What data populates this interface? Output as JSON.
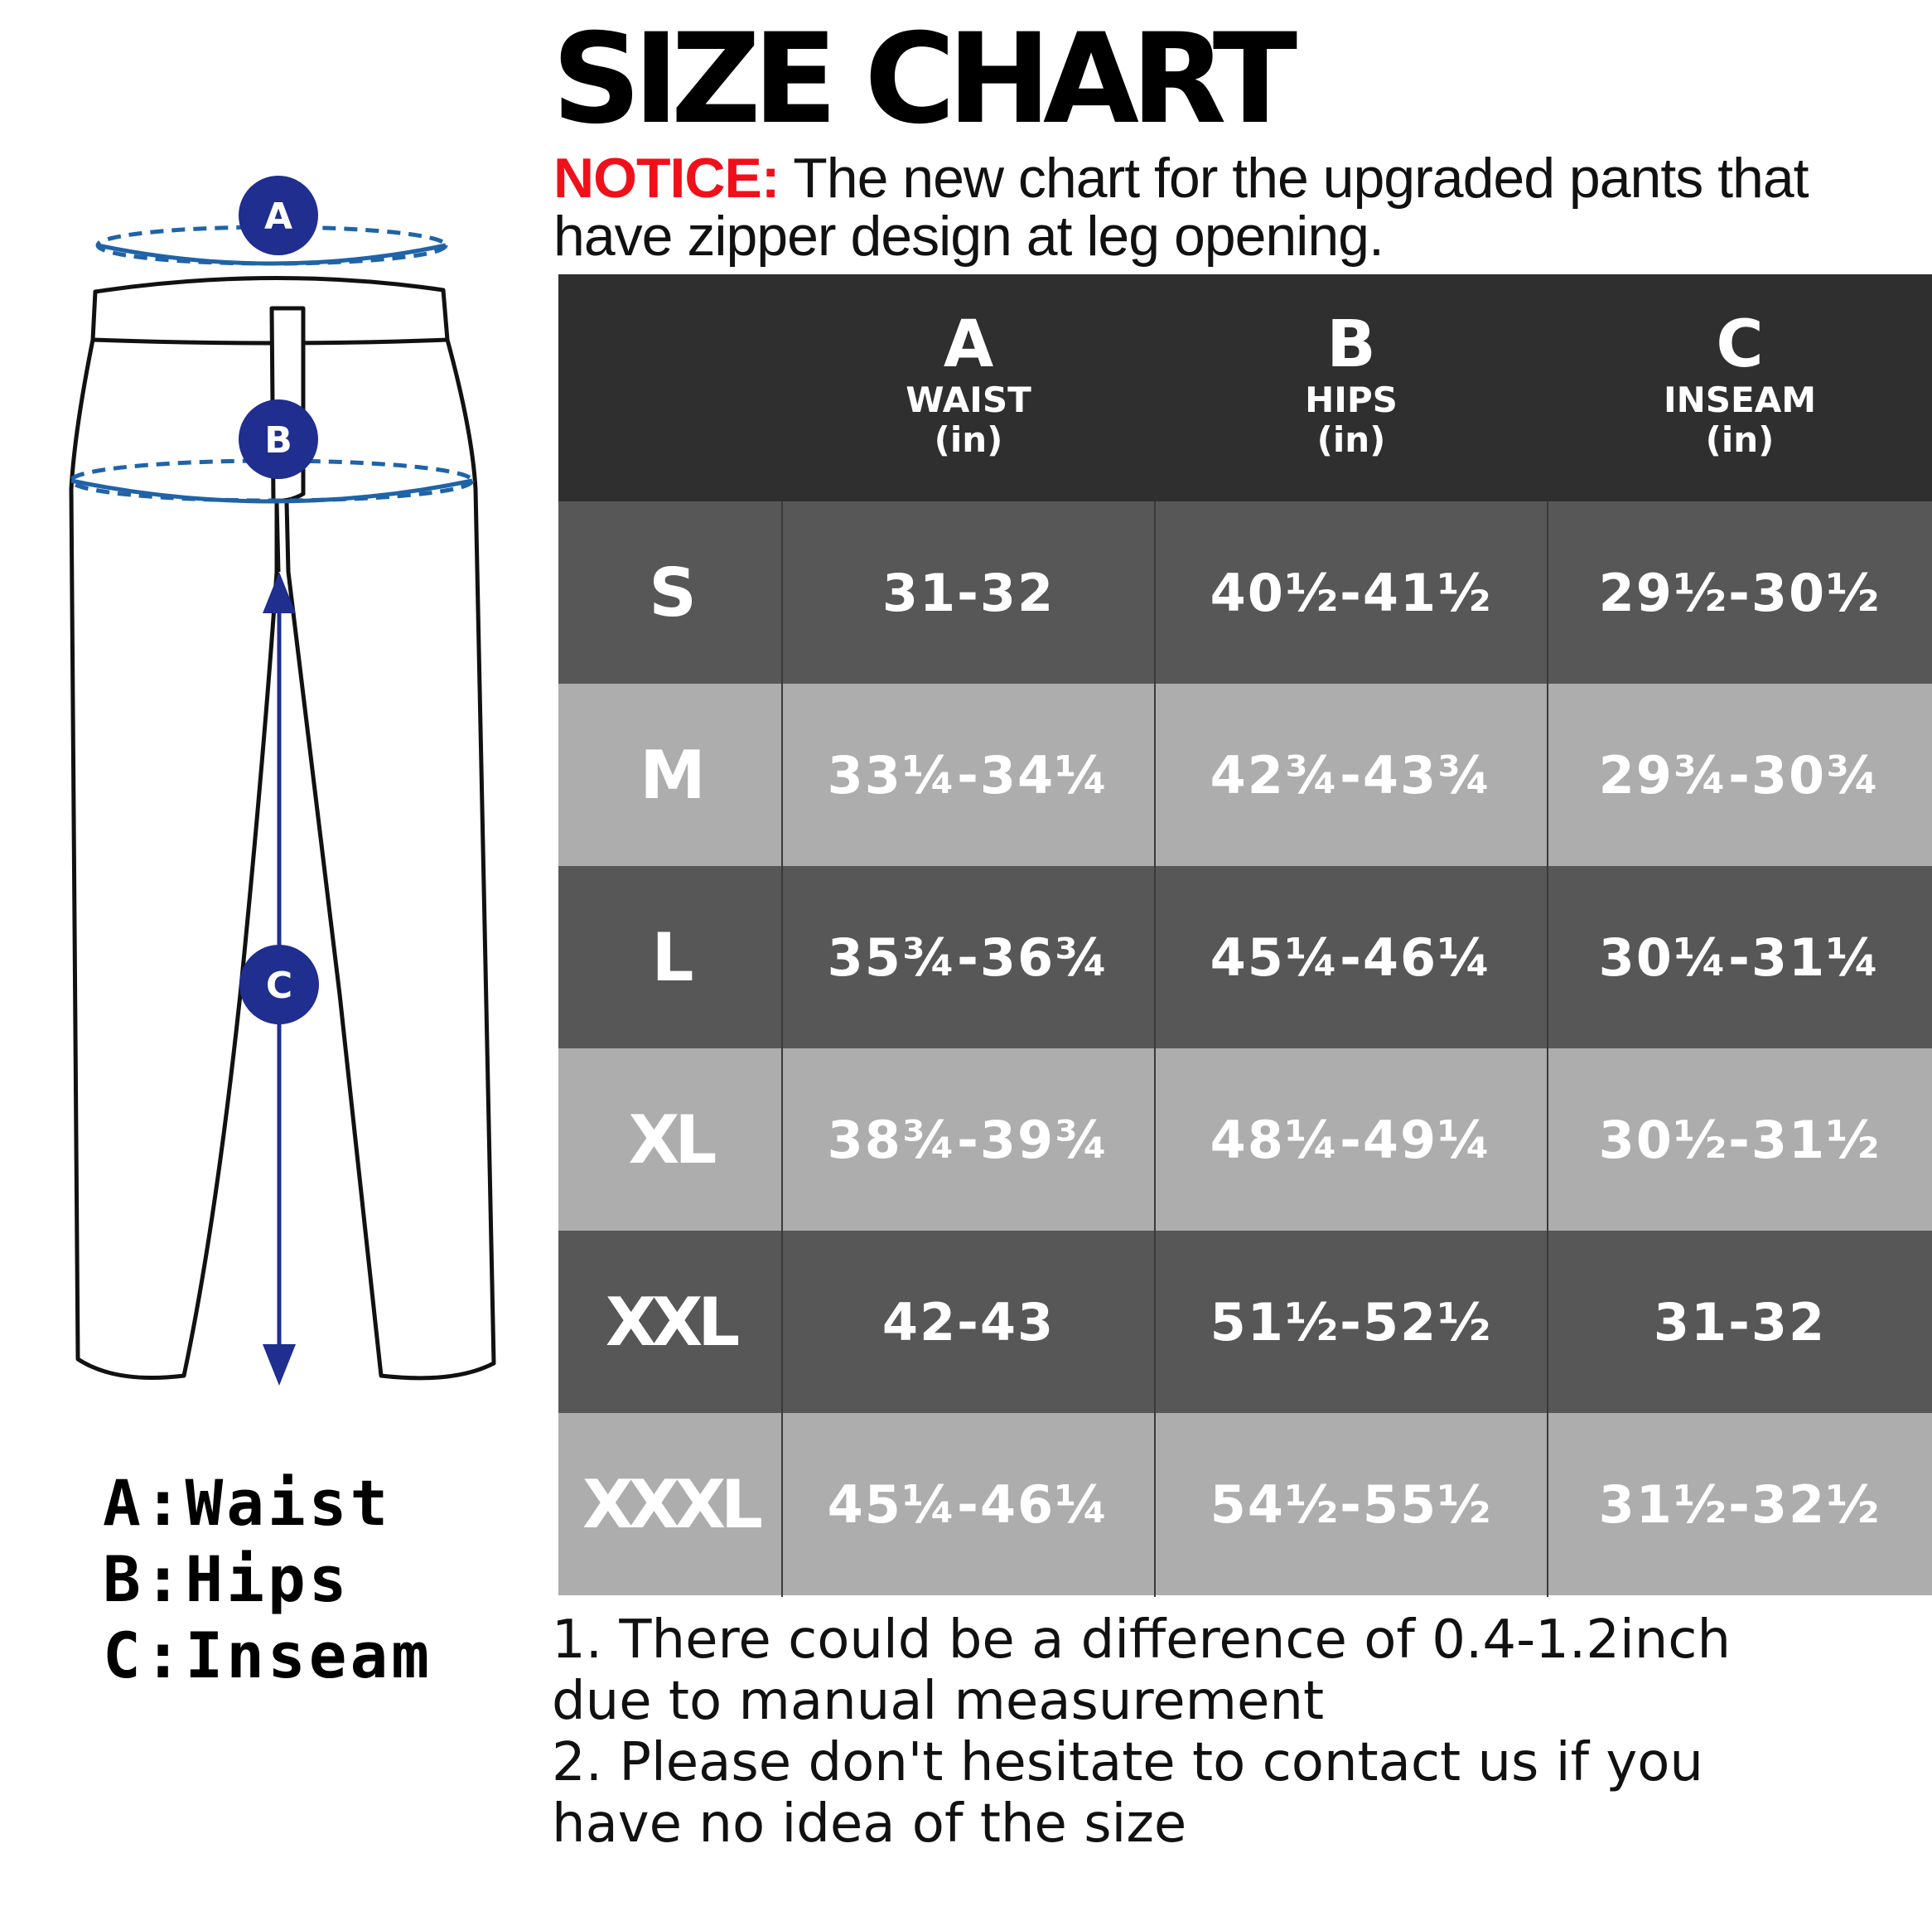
{
  "title": "SIZE CHART",
  "notice": {
    "label": "NOTICE:",
    "text_line1": " The new chart for the upgraded pants that",
    "text_line2": "have zipper design at leg opening."
  },
  "diagram": {
    "badge_a": "A",
    "badge_b": "B",
    "badge_c": "C",
    "outline_color": "#111111",
    "measure_color": "#1f63a8",
    "badge_color": "#1f2e8f"
  },
  "legend": {
    "a": "A:Waist",
    "b": "B:Hips",
    "c": "C:Inseam"
  },
  "table": {
    "columns": [
      {
        "letter": "A",
        "name": "WAIST",
        "unit": "(in)"
      },
      {
        "letter": "B",
        "name": "HIPS",
        "unit": "(in)"
      },
      {
        "letter": "C",
        "name": "INSEAM",
        "unit": "(in)"
      }
    ],
    "rows": [
      {
        "size": "S",
        "waist": "31-32",
        "hips": "40½-41½",
        "inseam": "29½-30½"
      },
      {
        "size": "M",
        "waist": "33¼-34¼",
        "hips": "42¾-43¾",
        "inseam": "29¾-30¾"
      },
      {
        "size": "L",
        "waist": "35¾-36¾",
        "hips": "45¼-46¼",
        "inseam": "30¼-31¼"
      },
      {
        "size": "XL",
        "waist": "38¾-39¾",
        "hips": "48¼-49¼",
        "inseam": "30½-31½"
      },
      {
        "size": "XXL",
        "waist": "42-43",
        "hips": "51½-52½",
        "inseam": "31-32"
      },
      {
        "size": "XXXL",
        "waist": "45¼-46¼",
        "hips": "54½-55½",
        "inseam": "31½-32½"
      }
    ],
    "header_bg": "#2f2f2f",
    "dark_row_bg": "#575757",
    "light_row_bg": "#adadad"
  },
  "notes": {
    "line1": "1. There could be a difference of 0.4-1.2inch",
    "line2": "due to manual measurement",
    "line3": "2. Please don't hesitate to contact us if you",
    "line4": "have no idea of the size"
  }
}
